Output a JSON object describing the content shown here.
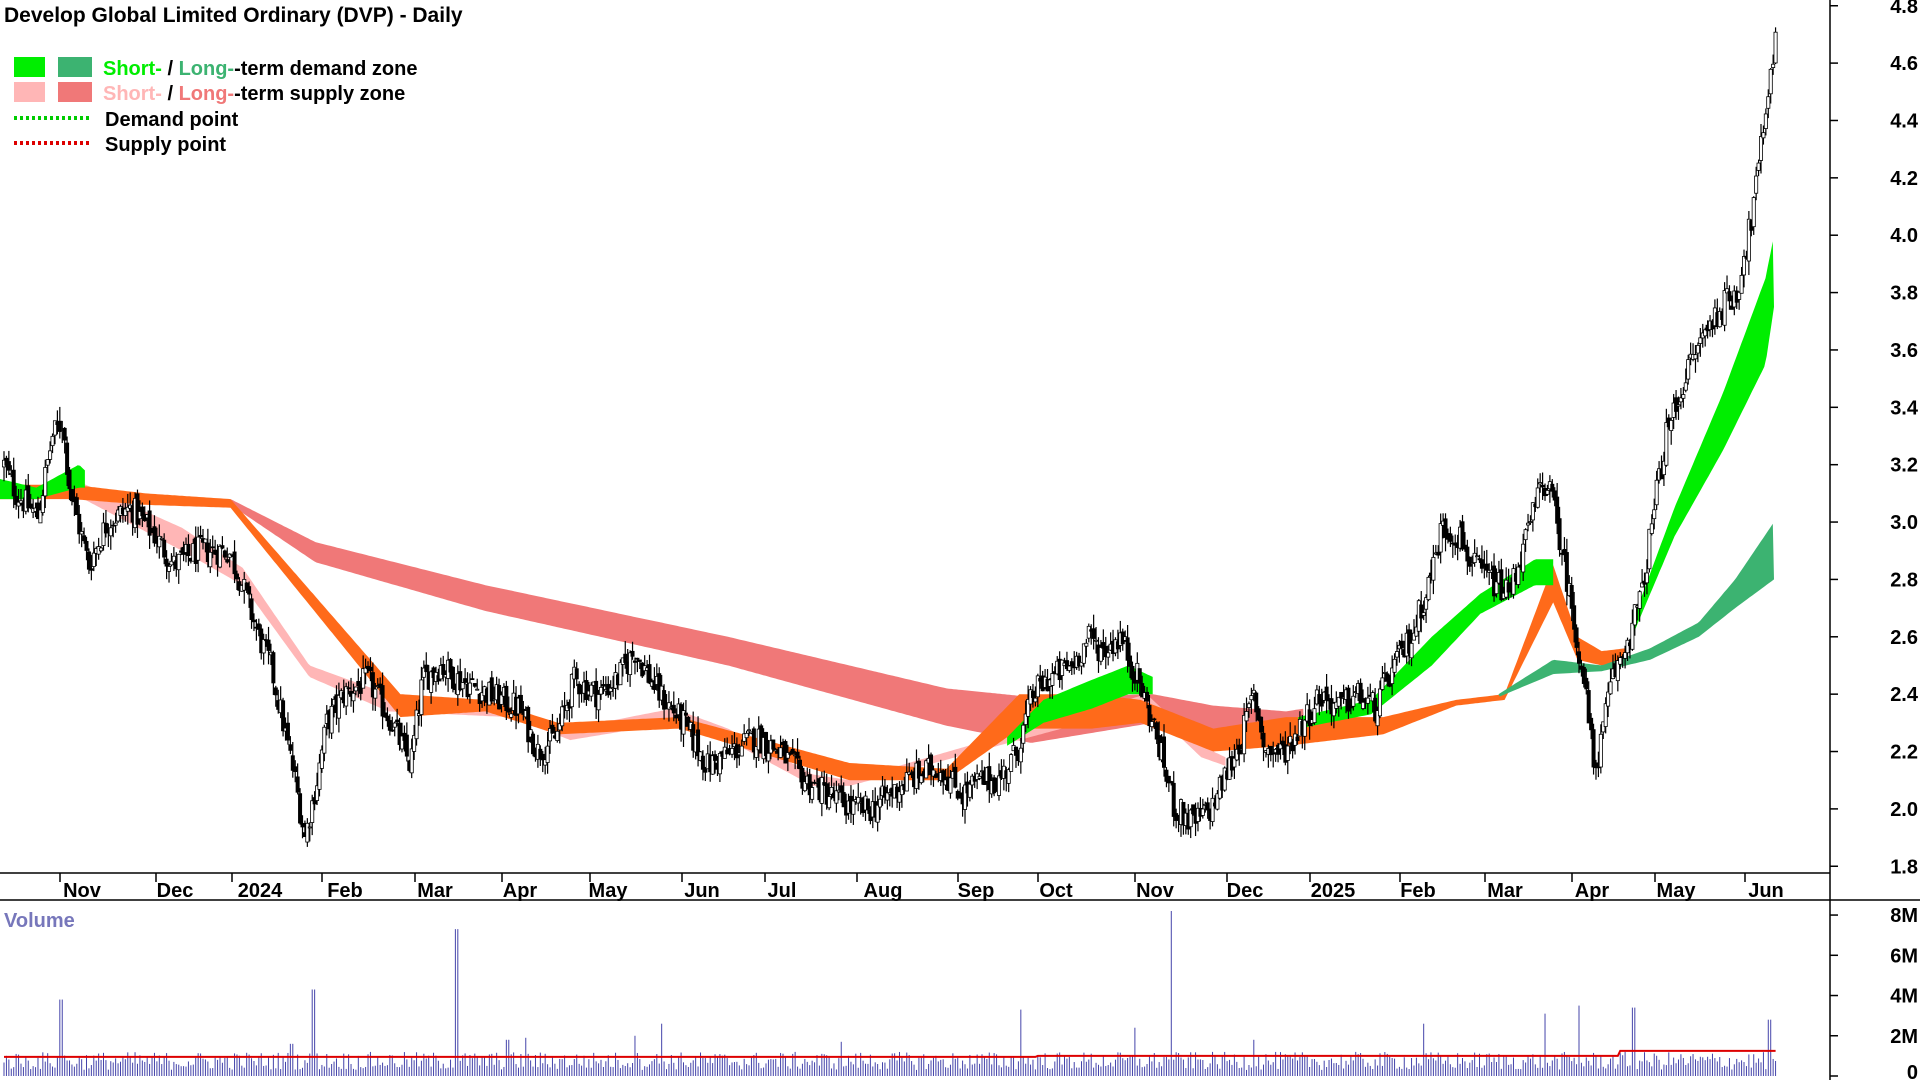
{
  "chart_data": {
    "type": "candlestick",
    "title": "Develop Global Limited Ordinary (DVP) - Daily",
    "legend": [
      {
        "label_short": "Short-",
        "label_sep": " / ",
        "label_long": "Long-",
        "label_rest": "-term demand zone",
        "short_color": "#00ee00",
        "long_color": "#3cb371"
      },
      {
        "label_short": "Short-",
        "label_sep": " / ",
        "label_long": "Long-",
        "label_rest": "-term supply zone",
        "short_color": "#ffb6b6",
        "long_color": "#f07878"
      },
      {
        "label": "Demand point",
        "color": "#00cc00"
      },
      {
        "label": "Supply point",
        "color": "#dd0000"
      }
    ],
    "legend_placement": "top-left",
    "y_axis": {
      "ticks": [
        1.8,
        2.0,
        2.2,
        2.4,
        2.6,
        2.8,
        3.0,
        3.2,
        3.4,
        3.6,
        3.8,
        4.0,
        4.2,
        4.4,
        4.6,
        4.8
      ],
      "range": [
        1.78,
        4.82
      ],
      "position": "right"
    },
    "x_axis": {
      "labels": [
        "Nov",
        "Dec",
        "2024",
        "Feb",
        "Mar",
        "Apr",
        "May",
        "Jun",
        "Jul",
        "Aug",
        "Sep",
        "Oct",
        "Nov",
        "Dec",
        "2025",
        "Feb",
        "Mar",
        "Apr",
        "May",
        "Jun"
      ]
    },
    "price_keypoints": [
      [
        0,
        3.2
      ],
      [
        10,
        3.1
      ],
      [
        28,
        3.02
      ],
      [
        40,
        3.3
      ],
      [
        48,
        3.35
      ],
      [
        55,
        3.1
      ],
      [
        70,
        2.85
      ],
      [
        85,
        3.0
      ],
      [
        105,
        3.05
      ],
      [
        125,
        2.95
      ],
      [
        140,
        2.85
      ],
      [
        160,
        2.9
      ],
      [
        185,
        2.9
      ],
      [
        195,
        2.8
      ],
      [
        210,
        2.6
      ],
      [
        220,
        2.5
      ],
      [
        230,
        2.3
      ],
      [
        240,
        2.1
      ],
      [
        248,
        1.9
      ],
      [
        258,
        2.1
      ],
      [
        266,
        2.3
      ],
      [
        280,
        2.4
      ],
      [
        300,
        2.45
      ],
      [
        320,
        2.3
      ],
      [
        335,
        2.15
      ],
      [
        345,
        2.45
      ],
      [
        360,
        2.5
      ],
      [
        375,
        2.45
      ],
      [
        400,
        2.4
      ],
      [
        425,
        2.35
      ],
      [
        440,
        2.2
      ],
      [
        455,
        2.25
      ],
      [
        470,
        2.45
      ],
      [
        490,
        2.4
      ],
      [
        505,
        2.45
      ],
      [
        520,
        2.55
      ],
      [
        540,
        2.4
      ],
      [
        560,
        2.3
      ],
      [
        580,
        2.15
      ],
      [
        600,
        2.2
      ],
      [
        620,
        2.25
      ],
      [
        640,
        2.2
      ],
      [
        660,
        2.1
      ],
      [
        680,
        2.05
      ],
      [
        700,
        2.0
      ],
      [
        715,
        2.0
      ],
      [
        730,
        2.05
      ],
      [
        745,
        2.1
      ],
      [
        770,
        2.15
      ],
      [
        790,
        2.05
      ],
      [
        805,
        2.1
      ],
      [
        820,
        2.1
      ],
      [
        835,
        2.2
      ],
      [
        848,
        2.4
      ],
      [
        860,
        2.45
      ],
      [
        880,
        2.5
      ],
      [
        895,
        2.6
      ],
      [
        905,
        2.55
      ],
      [
        920,
        2.6
      ],
      [
        935,
        2.45
      ],
      [
        950,
        2.25
      ],
      [
        965,
        2.0
      ],
      [
        980,
        1.95
      ],
      [
        995,
        2.0
      ],
      [
        1010,
        2.15
      ],
      [
        1020,
        2.25
      ],
      [
        1030,
        2.4
      ],
      [
        1040,
        2.2
      ],
      [
        1055,
        2.2
      ],
      [
        1070,
        2.3
      ],
      [
        1085,
        2.4
      ],
      [
        1100,
        2.35
      ],
      [
        1115,
        2.4
      ],
      [
        1130,
        2.35
      ],
      [
        1140,
        2.45
      ],
      [
        1160,
        2.6
      ],
      [
        1175,
        2.8
      ],
      [
        1185,
        2.98
      ],
      [
        1200,
        2.95
      ],
      [
        1210,
        2.85
      ],
      [
        1225,
        2.8
      ],
      [
        1240,
        2.75
      ],
      [
        1255,
        2.95
      ],
      [
        1265,
        3.1
      ],
      [
        1272,
        3.15
      ],
      [
        1282,
        2.95
      ],
      [
        1292,
        2.7
      ],
      [
        1300,
        2.5
      ],
      [
        1305,
        2.35
      ],
      [
        1310,
        2.15
      ],
      [
        1315,
        2.2
      ],
      [
        1325,
        2.45
      ],
      [
        1335,
        2.55
      ],
      [
        1350,
        2.75
      ],
      [
        1360,
        3.05
      ],
      [
        1370,
        3.3
      ],
      [
        1385,
        3.5
      ],
      [
        1400,
        3.65
      ],
      [
        1415,
        3.75
      ],
      [
        1428,
        3.8
      ],
      [
        1440,
        4.05
      ],
      [
        1448,
        4.3
      ],
      [
        1455,
        4.55
      ],
      [
        1460,
        4.68
      ]
    ],
    "long_supply_zone": {
      "top": [
        [
          190,
          3.08
        ],
        [
          260,
          2.93
        ],
        [
          400,
          2.78
        ],
        [
          600,
          2.6
        ],
        [
          780,
          2.42
        ],
        [
          850,
          2.39
        ],
        [
          950,
          2.4
        ],
        [
          1000,
          2.36
        ],
        [
          1060,
          2.34
        ],
        [
          1075,
          2.35
        ]
      ],
      "bottom": [
        [
          190,
          3.06
        ],
        [
          260,
          2.86
        ],
        [
          400,
          2.69
        ],
        [
          600,
          2.5
        ],
        [
          780,
          2.29
        ],
        [
          850,
          2.23
        ],
        [
          950,
          2.3
        ],
        [
          1000,
          2.27
        ],
        [
          1060,
          2.25
        ],
        [
          1075,
          2.26
        ]
      ]
    },
    "short_supply_zone": {
      "top": [
        [
          60,
          3.15
        ],
        [
          150,
          2.98
        ],
        [
          200,
          2.84
        ],
        [
          255,
          2.5
        ],
        [
          320,
          2.4
        ],
        [
          420,
          2.35
        ],
        [
          470,
          2.28
        ],
        [
          555,
          2.35
        ],
        [
          600,
          2.28
        ],
        [
          670,
          2.12
        ],
        [
          700,
          2.1
        ],
        [
          945,
          2.4
        ],
        [
          990,
          2.22
        ],
        [
          1010,
          2.18
        ]
      ],
      "bottom": [
        [
          60,
          3.1
        ],
        [
          150,
          2.9
        ],
        [
          200,
          2.78
        ],
        [
          255,
          2.46
        ],
        [
          320,
          2.34
        ],
        [
          420,
          2.32
        ],
        [
          470,
          2.24
        ],
        [
          555,
          2.3
        ],
        [
          600,
          2.24
        ],
        [
          670,
          2.08
        ],
        [
          700,
          2.08
        ],
        [
          945,
          2.36
        ],
        [
          990,
          2.18
        ],
        [
          1010,
          2.15
        ]
      ]
    },
    "orange_band": {
      "top": [
        [
          0,
          3.13
        ],
        [
          60,
          3.13
        ],
        [
          120,
          3.1
        ],
        [
          190,
          3.08
        ],
        [
          330,
          2.4
        ],
        [
          400,
          2.38
        ],
        [
          460,
          2.3
        ],
        [
          560,
          2.32
        ],
        [
          700,
          2.16
        ],
        [
          780,
          2.14
        ],
        [
          840,
          2.4
        ],
        [
          900,
          2.4
        ],
        [
          940,
          2.38
        ],
        [
          1000,
          2.28
        ],
        [
          1060,
          2.32
        ],
        [
          1140,
          2.32
        ],
        [
          1200,
          2.38
        ],
        [
          1240,
          2.4
        ],
        [
          1280,
          2.85
        ],
        [
          1300,
          2.6
        ],
        [
          1320,
          2.55
        ],
        [
          1340,
          2.56
        ]
      ],
      "bottom": [
        [
          0,
          3.08
        ],
        [
          60,
          3.08
        ],
        [
          120,
          3.06
        ],
        [
          190,
          3.05
        ],
        [
          330,
          2.32
        ],
        [
          400,
          2.34
        ],
        [
          460,
          2.26
        ],
        [
          560,
          2.28
        ],
        [
          700,
          2.1
        ],
        [
          780,
          2.1
        ],
        [
          840,
          2.28
        ],
        [
          900,
          2.28
        ],
        [
          940,
          2.3
        ],
        [
          1000,
          2.2
        ],
        [
          1060,
          2.22
        ],
        [
          1140,
          2.26
        ],
        [
          1200,
          2.36
        ],
        [
          1240,
          2.38
        ],
        [
          1280,
          2.72
        ],
        [
          1300,
          2.52
        ],
        [
          1320,
          2.5
        ],
        [
          1340,
          2.52
        ]
      ]
    },
    "short_demand_zones": [
      {
        "top": [
          [
            0,
            3.15
          ],
          [
            30,
            3.12
          ],
          [
            65,
            3.2
          ],
          [
            70,
            3.18
          ]
        ],
        "bottom": [
          [
            0,
            3.08
          ],
          [
            30,
            3.08
          ],
          [
            65,
            3.12
          ],
          [
            70,
            3.12
          ]
        ]
      },
      {
        "top": [
          [
            830,
            2.25
          ],
          [
            860,
            2.38
          ],
          [
            900,
            2.45
          ],
          [
            930,
            2.5
          ],
          [
            950,
            2.46
          ]
        ],
        "bottom": [
          [
            830,
            2.22
          ],
          [
            860,
            2.3
          ],
          [
            900,
            2.35
          ],
          [
            930,
            2.4
          ],
          [
            950,
            2.4
          ]
        ]
      },
      {
        "top": [
          [
            1070,
            2.32
          ],
          [
            1130,
            2.38
          ],
          [
            1180,
            2.6
          ],
          [
            1220,
            2.75
          ],
          [
            1265,
            2.87
          ],
          [
            1280,
            2.87
          ]
        ],
        "bottom": [
          [
            1070,
            2.28
          ],
          [
            1130,
            2.33
          ],
          [
            1180,
            2.5
          ],
          [
            1220,
            2.68
          ],
          [
            1265,
            2.78
          ],
          [
            1280,
            2.78
          ]
        ]
      },
      {
        "top": [
          [
            1345,
            2.65
          ],
          [
            1380,
            3.05
          ],
          [
            1420,
            3.45
          ],
          [
            1455,
            3.85
          ],
          [
            1462,
            4.0
          ]
        ],
        "bottom": [
          [
            1345,
            2.6
          ],
          [
            1380,
            2.95
          ],
          [
            1420,
            3.25
          ],
          [
            1455,
            3.55
          ],
          [
            1462,
            3.75
          ]
        ]
      }
    ],
    "long_demand_zone": {
      "top": [
        [
          1235,
          2.4
        ],
        [
          1280,
          2.52
        ],
        [
          1320,
          2.5
        ],
        [
          1360,
          2.56
        ],
        [
          1400,
          2.65
        ],
        [
          1430,
          2.8
        ],
        [
          1462,
          3.0
        ]
      ],
      "bottom": [
        [
          1235,
          2.39
        ],
        [
          1280,
          2.47
        ],
        [
          1320,
          2.48
        ],
        [
          1360,
          2.52
        ],
        [
          1400,
          2.6
        ],
        [
          1430,
          2.7
        ],
        [
          1462,
          2.8
        ]
      ]
    },
    "volume": {
      "label": "Volume",
      "ticks": [
        "0",
        "2M",
        "4M",
        "6M",
        "8M"
      ],
      "tick_values": [
        0,
        2,
        4,
        6,
        8
      ],
      "range": [
        0,
        8.5
      ],
      "average_level": 0.95,
      "spikes": [
        [
          47,
          3.8
        ],
        [
          237,
          1.6
        ],
        [
          255,
          4.3
        ],
        [
          373,
          7.3
        ],
        [
          415,
          1.8
        ],
        [
          430,
          1.9
        ],
        [
          520,
          2.0
        ],
        [
          542,
          2.6
        ],
        [
          690,
          1.7
        ],
        [
          838,
          3.3
        ],
        [
          932,
          2.4
        ],
        [
          962,
          8.2
        ],
        [
          1030,
          1.8
        ],
        [
          1170,
          2.6
        ],
        [
          1270,
          3.1
        ],
        [
          1298,
          3.5
        ],
        [
          1343,
          3.4
        ],
        [
          1455,
          2.8
        ]
      ]
    }
  }
}
